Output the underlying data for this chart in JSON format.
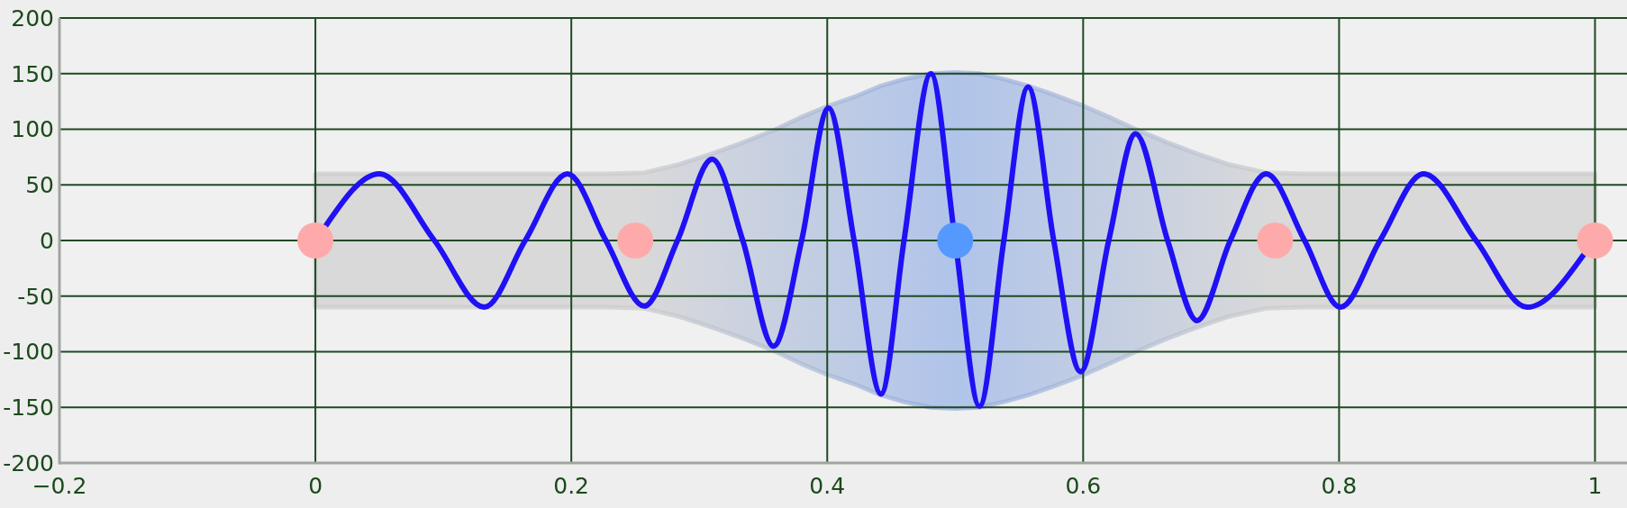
{
  "chart_data": {
    "type": "line",
    "xlim": [
      -0.2,
      1.025
    ],
    "xticks": [
      {
        "value": -0.2,
        "label": "−0.2"
      },
      0,
      0.2,
      0.4,
      0.6,
      0.8,
      1
    ],
    "ylim": [
      -200,
      200
    ],
    "yticks": [
      -200,
      -150,
      -100,
      -50,
      0,
      50,
      100,
      150,
      200
    ],
    "grid": true,
    "series": [
      {
        "color": "#1f10f5",
        "x": [
          0,
          0.008,
          0.05,
          0.093,
          0.132,
          0.164,
          0.197,
          0.227,
          0.257,
          0.283,
          0.31,
          0.334,
          0.358,
          0.38,
          0.401,
          0.421,
          0.442,
          0.46,
          0.481,
          0.5,
          0.519,
          0.538,
          0.557,
          0.577,
          0.598,
          0.62,
          0.641,
          0.666,
          0.689,
          0.715,
          0.743,
          0.773,
          0.801,
          0.832,
          0.866,
          0.907,
          0.947,
          0.991,
          1
        ],
        "values": [
          null,
          13,
          60,
          0,
          -60,
          0,
          60,
          0,
          -59,
          0,
          73,
          0,
          -95,
          0,
          119,
          0,
          -138,
          0,
          150,
          0,
          -149,
          0,
          138,
          0,
          -118,
          0,
          96,
          0,
          -72,
          0,
          60,
          0,
          -60,
          0,
          60,
          0,
          -60,
          -13,
          null
        ],
        "lower": [
          -60,
          -60,
          -60,
          -60,
          -60,
          -60,
          -60,
          -60,
          -61,
          -68,
          -78,
          -88,
          -99,
          -111,
          -121,
          -129,
          -139,
          -145,
          -150,
          -151,
          -150,
          -145,
          -139,
          -131,
          -122,
          -111,
          -100,
          -88,
          -78,
          -68,
          -61,
          -60,
          -60,
          -60,
          -60,
          -60,
          -60,
          -60,
          -60
        ],
        "upper": [
          60,
          60,
          60,
          60,
          60,
          60,
          60,
          60,
          61,
          68,
          78,
          88,
          99,
          111,
          121,
          129,
          139,
          145,
          150,
          151,
          150,
          145,
          139,
          131,
          122,
          111,
          100,
          88,
          78,
          68,
          61,
          60,
          60,
          60,
          60,
          60,
          60,
          60,
          60
        ]
      },
      {
        "type": "scatter",
        "marker": "circle",
        "x": [
          0,
          0.25,
          0.5,
          0.75,
          1
        ],
        "values": [
          0,
          0,
          0,
          0,
          0
        ],
        "colors": [
          "#ffaaaa",
          "#ffaaaa",
          "#5599ff",
          "#ffaaaa",
          "#ffaaaa"
        ]
      }
    ]
  }
}
